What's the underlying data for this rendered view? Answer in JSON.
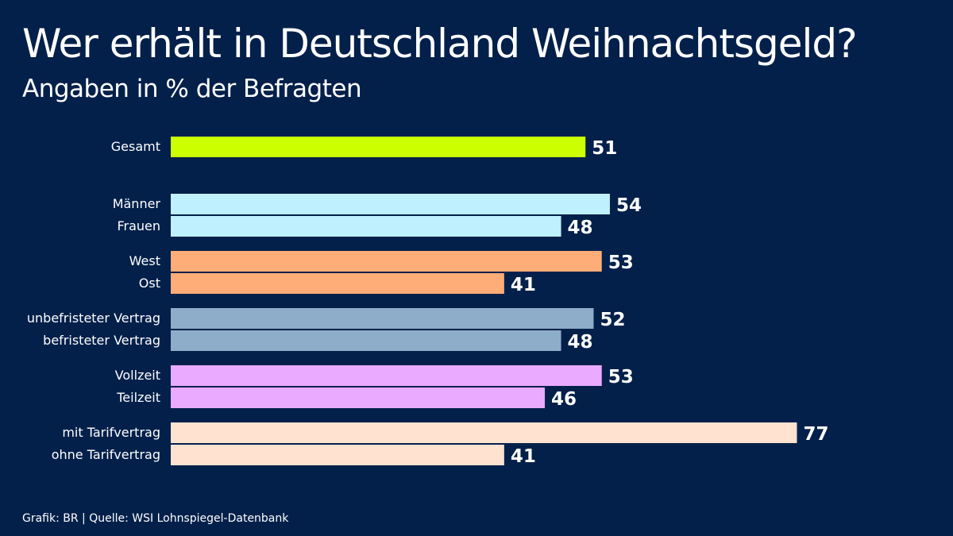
{
  "title": "Wer erhält in Deutschland Weihnachtsgeld?",
  "subtitle": "Angaben in % der Befragten",
  "source": "Grafik: BR | Quelle: WSI Lohnspiegel-Datenbank",
  "chart_data": {
    "type": "bar",
    "orientation": "horizontal",
    "title": "Wer erhält in Deutschland Weihnachtsgeld?",
    "subtitle": "Angaben in % der Befragten",
    "categories": [
      "Gesamt",
      "Männer",
      "Frauen",
      "West",
      "Ost",
      "unbefristeter Vertrag",
      "befristeter Vertrag",
      "Vollzeit",
      "Teilzeit",
      "mit Tarifvertrag",
      "ohne Tarifvertrag"
    ],
    "values": [
      51,
      54,
      48,
      53,
      41,
      52,
      48,
      53,
      46,
      77,
      41
    ],
    "groups": [
      0,
      1,
      1,
      2,
      2,
      3,
      3,
      4,
      4,
      5,
      5
    ],
    "group_colors": [
      "#ccff00",
      "#bff0fd",
      "#ffad78",
      "#8eadc8",
      "#eaaaff",
      "#ffe2d0"
    ],
    "data_labels": true,
    "grid": false,
    "xlim": [
      0,
      100
    ]
  }
}
